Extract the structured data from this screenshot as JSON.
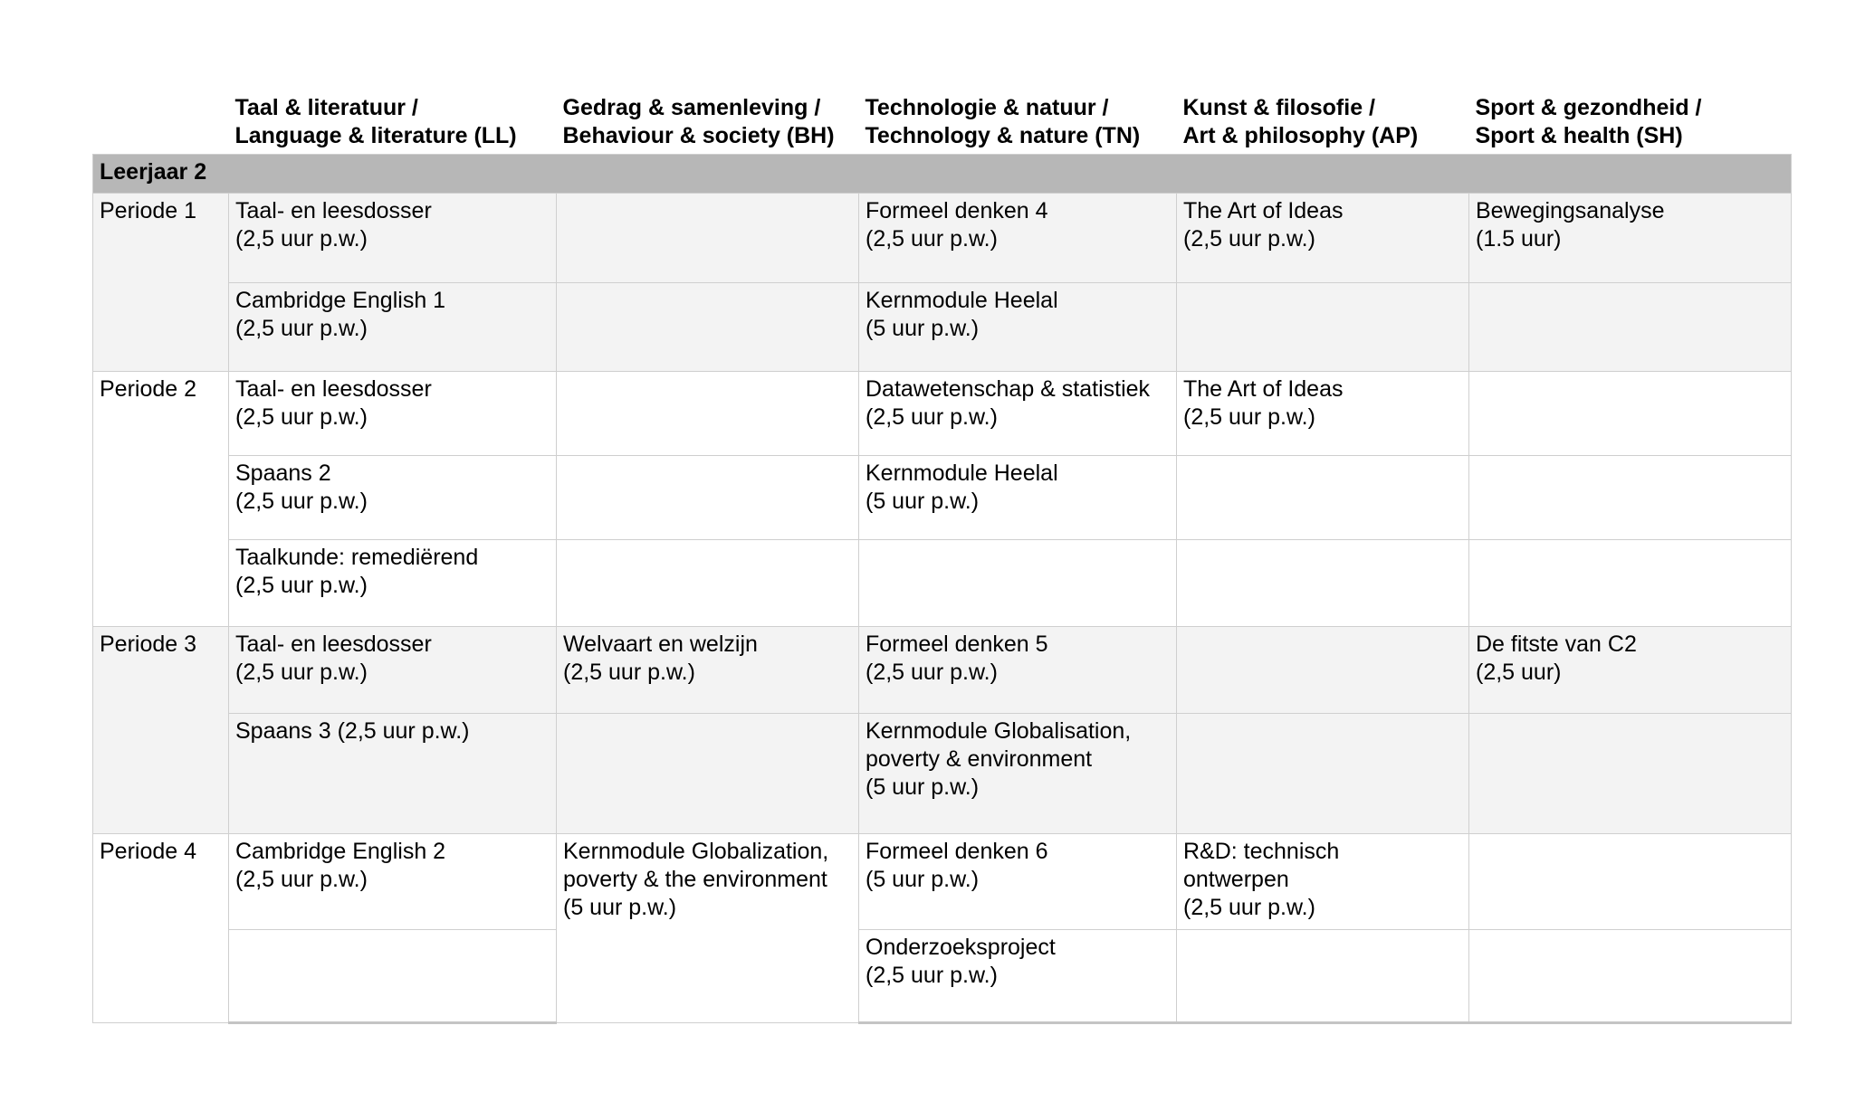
{
  "columns": [
    {
      "line1": "",
      "line2": ""
    },
    {
      "line1": "Taal & literatuur /",
      "line2": "Language & literature (LL)"
    },
    {
      "line1": "Gedrag & samenleving /",
      "line2": "Behaviour & society (BH)"
    },
    {
      "line1": "Technologie & natuur /",
      "line2": "Technology & nature (TN)"
    },
    {
      "line1": "Kunst & filosofie /",
      "line2": "Art & philosophy (AP)"
    },
    {
      "line1": "Sport & gezondheid /",
      "line2": "Sport & health (SH)"
    }
  ],
  "year_label": "Leerjaar 2",
  "periods": [
    {
      "label": "Periode 1",
      "rows": [
        {
          "ll": [
            "Taal- en leesdosser",
            "(2,5 uur p.w.)"
          ],
          "bh": [],
          "tn": [
            "Formeel denken 4",
            "(2,5 uur p.w.)"
          ],
          "ap": [
            "The Art of Ideas",
            "(2,5 uur p.w.)"
          ],
          "sh": [
            "Bewegingsanalyse",
            "(1.5 uur)"
          ]
        },
        {
          "ll": [
            "Cambridge English 1",
            "(2,5 uur p.w.)"
          ],
          "bh": [],
          "tn": [
            "Kernmodule Heelal",
            "(5 uur p.w.)"
          ],
          "ap": [],
          "sh": []
        }
      ]
    },
    {
      "label": "Periode 2",
      "rows": [
        {
          "ll": [
            "Taal- en leesdosser",
            "(2,5 uur p.w.)"
          ],
          "bh": [],
          "tn": [
            "Datawetenschap & statistiek",
            "(2,5 uur p.w.)"
          ],
          "ap": [
            "The Art of Ideas",
            "(2,5 uur p.w.)"
          ],
          "sh": []
        },
        {
          "ll": [
            "Spaans 2",
            "(2,5 uur p.w.)"
          ],
          "bh": [],
          "tn": [
            "Kernmodule Heelal",
            "(5 uur p.w.)"
          ],
          "ap": [],
          "sh": []
        },
        {
          "ll": [
            "Taalkunde: remediërend",
            "(2,5 uur p.w.)"
          ],
          "bh": [],
          "tn": [],
          "ap": [],
          "sh": []
        }
      ]
    },
    {
      "label": "Periode 3",
      "rows": [
        {
          "ll": [
            "Taal- en leesdosser",
            "(2,5 uur p.w.)"
          ],
          "bh": [
            "Welvaart en welzijn",
            "(2,5 uur p.w.)"
          ],
          "tn": [
            "Formeel denken 5",
            "(2,5 uur p.w.)"
          ],
          "ap": [],
          "sh": [
            "De fitste van C2",
            "(2,5 uur)"
          ]
        },
        {
          "ll": [
            "Spaans 3 (2,5 uur p.w.)"
          ],
          "bh": [],
          "tn": [
            "Kernmodule Globalisation,",
            "poverty & environment",
            "(5 uur p.w.)"
          ],
          "ap": [],
          "sh": []
        }
      ]
    },
    {
      "label": "Periode 4",
      "rows": [
        {
          "ll": [
            "Cambridge English 2",
            "(2,5 uur p.w.)"
          ],
          "bh": [
            "Kernmodule Globalization,",
            "poverty & the environment",
            "(5 uur p.w.)"
          ],
          "tn": [
            "Formeel denken 6",
            "(5 uur p.w.)"
          ],
          "ap": [
            "R&D: technisch",
            "ontwerpen",
            "(2,5 uur p.w.)"
          ],
          "sh": []
        },
        {
          "ll": [],
          "tn": [
            "Onderzoeksproject",
            "(2,5 uur p.w.)"
          ],
          "ap": [],
          "sh": []
        }
      ]
    }
  ]
}
